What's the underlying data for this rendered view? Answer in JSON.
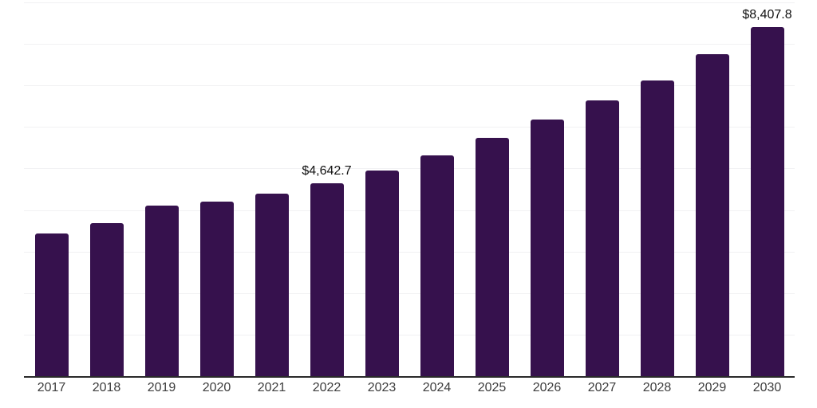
{
  "chart_data": {
    "type": "bar",
    "title": "",
    "xlabel": "",
    "ylabel": "",
    "categories": [
      "2017",
      "2018",
      "2019",
      "2020",
      "2021",
      "2022",
      "2023",
      "2024",
      "2025",
      "2026",
      "2027",
      "2028",
      "2029",
      "2030"
    ],
    "values": [
      3440,
      3680,
      4110,
      4210,
      4390,
      4642.7,
      4950,
      5310,
      5730,
      6170,
      6640,
      7120,
      7760,
      8407.8
    ],
    "data_labels": {
      "2022": "$4,642.7",
      "2030": "$8,407.8"
    },
    "ylim": [
      0,
      9000
    ],
    "gridline_step": 1000,
    "grid": true,
    "legend": false,
    "bar_color": "#36114d",
    "axis_line_color": "#2a2a2a",
    "gridline_color": "#f1f1f3",
    "tick_label_color": "#3c3c3c",
    "value_label_color": "#111111"
  }
}
